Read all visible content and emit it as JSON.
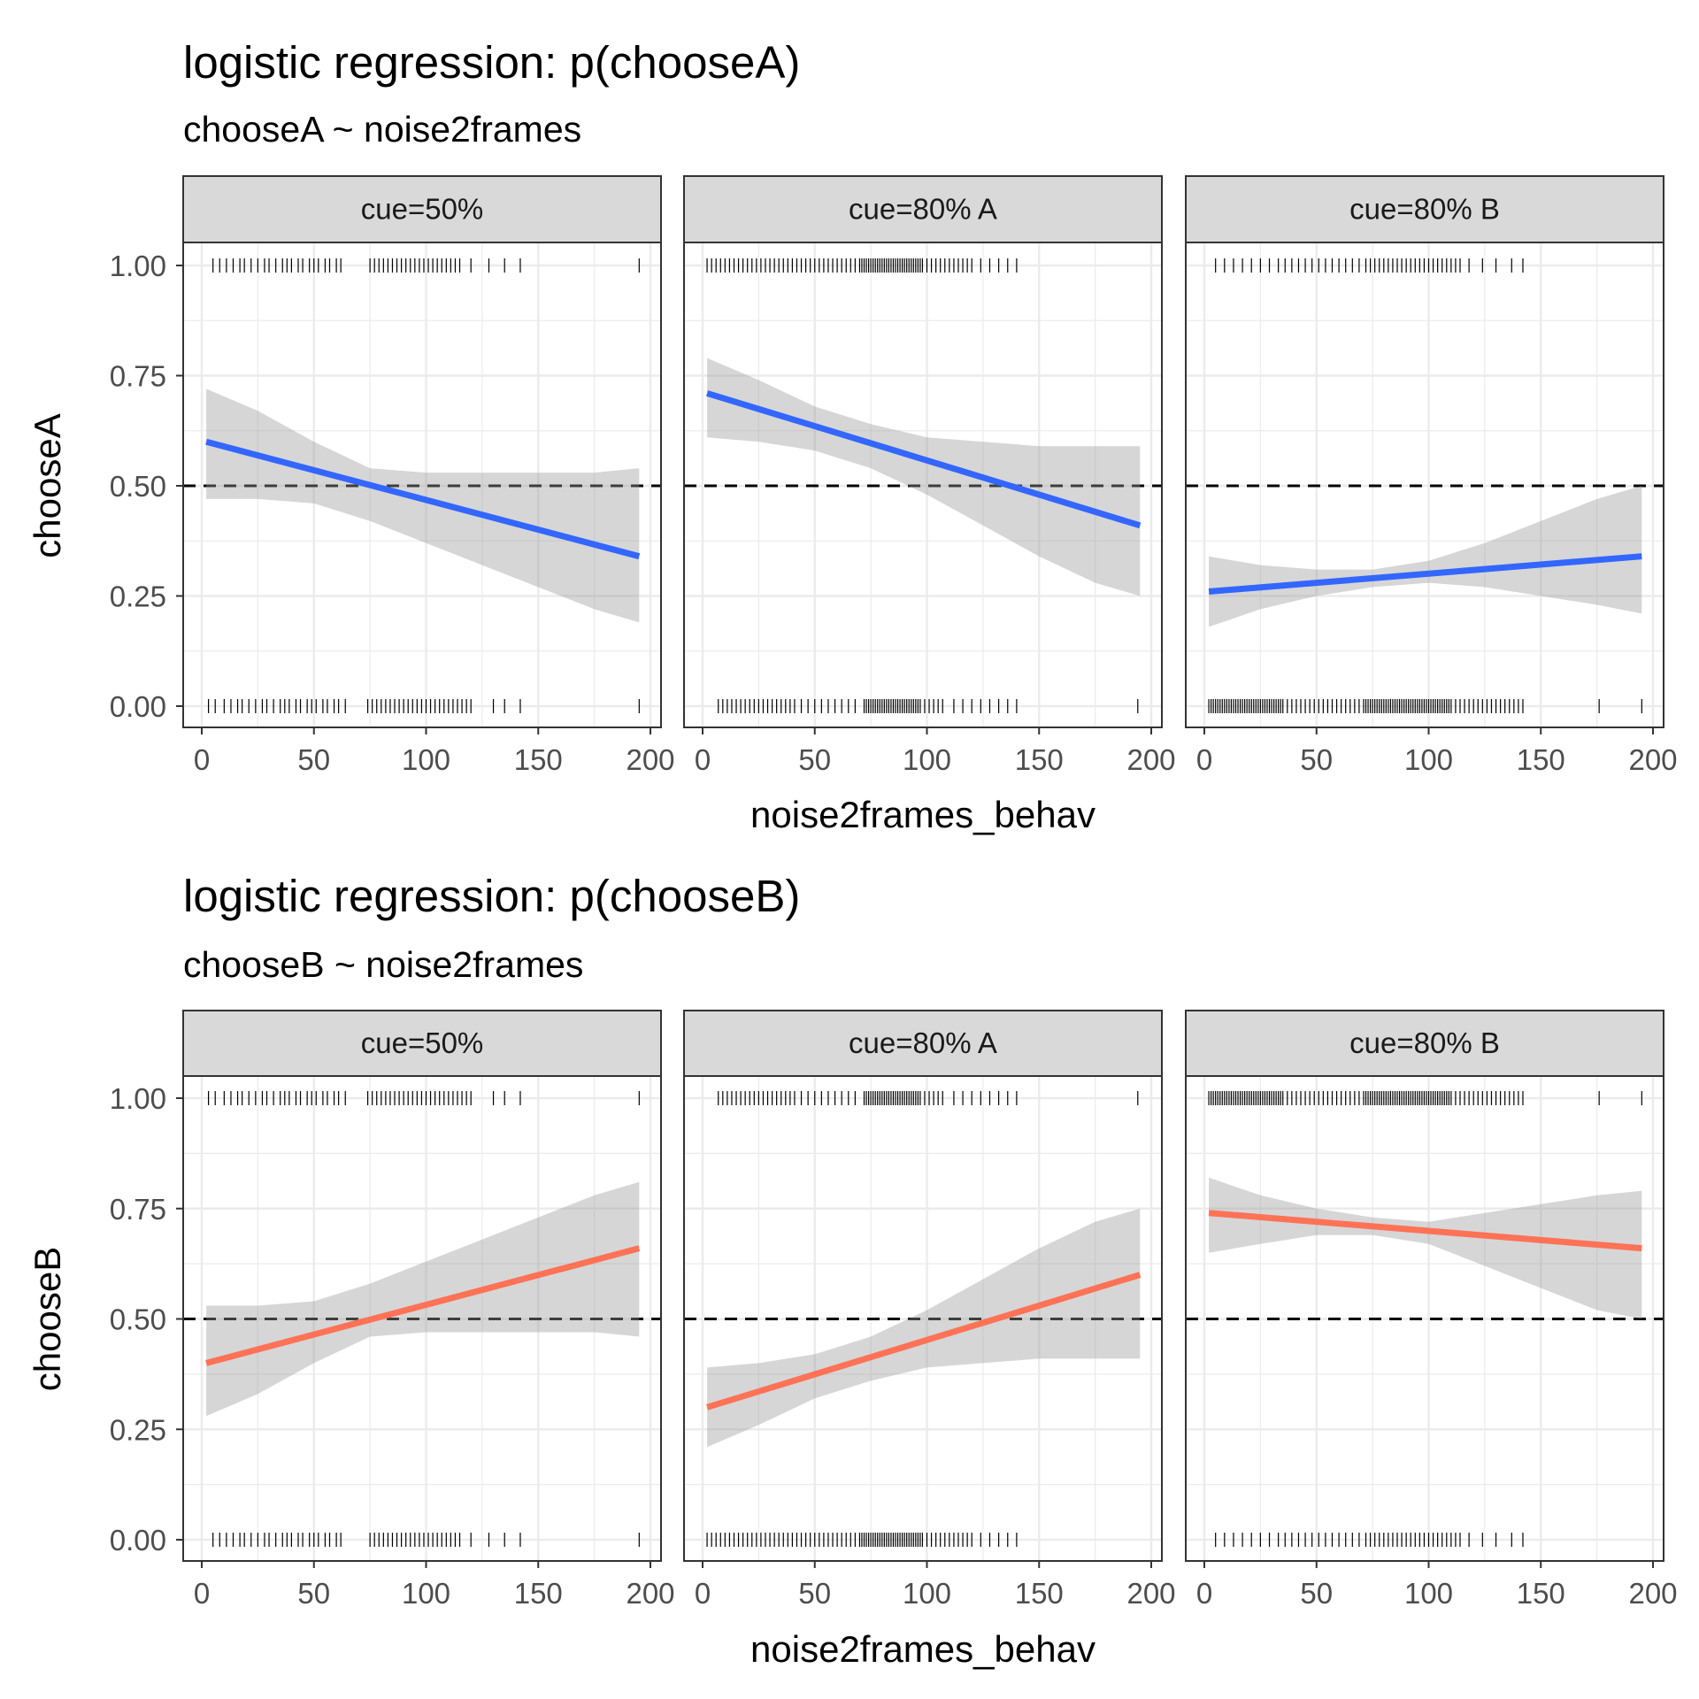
{
  "chart_data": [
    {
      "type": "line",
      "title": "logistic regression: p(chooseA)",
      "subtitle": "chooseA ~ noise2frames",
      "xlabel": "noise2frames_behav",
      "ylabel": "chooseA",
      "xlim": [
        -7,
        205
      ],
      "ylim": [
        -0.05,
        1.05
      ],
      "x_ticks": [
        "0",
        "50",
        "100",
        "150",
        "200"
      ],
      "y_ticks": [
        "0.00",
        "0.25",
        "0.50",
        "0.75",
        "1.00"
      ],
      "reference_line": 0.5,
      "grid": true,
      "line_color": "#3366FF",
      "panels": [
        {
          "strip": "cue=50%",
          "x": [
            2,
            195
          ],
          "fit": [
            0.6,
            0.34
          ],
          "ci_x": [
            2,
            25,
            50,
            75,
            100,
            125,
            150,
            175,
            195
          ],
          "ci_lower": [
            0.47,
            0.47,
            0.46,
            0.42,
            0.37,
            0.32,
            0.27,
            0.22,
            0.19
          ],
          "ci_upper": [
            0.72,
            0.67,
            0.6,
            0.54,
            0.53,
            0.53,
            0.53,
            0.53,
            0.54
          ],
          "rug_top": [
            5,
            8,
            11,
            14,
            17,
            19,
            22,
            25,
            28,
            30,
            33,
            36,
            38,
            40,
            43,
            45,
            48,
            50,
            52,
            55,
            57,
            60,
            62,
            75,
            77,
            79,
            81,
            83,
            85,
            87,
            89,
            91,
            93,
            95,
            97,
            99,
            101,
            103,
            105,
            107,
            109,
            111,
            113,
            115,
            120,
            128,
            135,
            142,
            195
          ],
          "rug_bottom": [
            3,
            6,
            10,
            13,
            16,
            18,
            21,
            24,
            27,
            29,
            32,
            35,
            37,
            39,
            42,
            44,
            47,
            49,
            51,
            54,
            56,
            59,
            61,
            64,
            74,
            76,
            78,
            80,
            82,
            84,
            86,
            88,
            90,
            92,
            94,
            96,
            98,
            100,
            102,
            104,
            106,
            108,
            110,
            112,
            114,
            116,
            118,
            120,
            130,
            135,
            142,
            195
          ]
        },
        {
          "strip": "cue=80% A",
          "x": [
            2,
            195
          ],
          "fit": [
            0.71,
            0.41
          ],
          "ci_x": [
            2,
            25,
            50,
            75,
            100,
            125,
            150,
            175,
            195
          ],
          "ci_lower": [
            0.61,
            0.6,
            0.58,
            0.54,
            0.48,
            0.41,
            0.34,
            0.28,
            0.25
          ],
          "ci_upper": [
            0.79,
            0.74,
            0.68,
            0.64,
            0.61,
            0.6,
            0.59,
            0.59,
            0.59
          ],
          "rug_top": [
            2,
            4,
            6,
            8,
            10,
            12,
            14,
            16,
            18,
            20,
            22,
            24,
            26,
            28,
            30,
            32,
            34,
            36,
            38,
            40,
            42,
            44,
            46,
            48,
            50,
            52,
            54,
            56,
            58,
            60,
            62,
            64,
            66,
            68,
            70,
            71,
            72,
            73,
            74,
            75,
            76,
            77,
            78,
            79,
            80,
            81,
            82,
            83,
            84,
            85,
            86,
            87,
            88,
            89,
            90,
            91,
            92,
            93,
            94,
            95,
            96,
            97,
            98,
            100,
            102,
            104,
            106,
            108,
            110,
            112,
            114,
            116,
            118,
            120,
            124,
            128,
            132,
            136,
            140
          ],
          "rug_bottom": [
            7,
            9,
            11,
            13,
            15,
            17,
            19,
            21,
            23,
            25,
            27,
            29,
            31,
            33,
            35,
            37,
            39,
            41,
            44,
            47,
            50,
            53,
            56,
            59,
            62,
            65,
            68,
            72,
            73,
            74,
            75,
            76,
            77,
            78,
            79,
            80,
            81,
            82,
            83,
            84,
            85,
            86,
            87,
            88,
            89,
            90,
            91,
            92,
            93,
            94,
            95,
            96,
            97,
            99,
            101,
            103,
            105,
            107,
            112,
            116,
            120,
            124,
            128,
            132,
            136,
            140,
            194
          ]
        },
        {
          "strip": "cue=80% B",
          "x": [
            2,
            195
          ],
          "fit": [
            0.26,
            0.34
          ],
          "ci_x": [
            2,
            25,
            50,
            75,
            100,
            125,
            150,
            175,
            195
          ],
          "ci_lower": [
            0.18,
            0.22,
            0.25,
            0.27,
            0.28,
            0.27,
            0.25,
            0.23,
            0.21
          ],
          "ci_upper": [
            0.34,
            0.32,
            0.31,
            0.31,
            0.33,
            0.37,
            0.42,
            0.47,
            0.5
          ],
          "rug_top": [
            5,
            9,
            13,
            17,
            21,
            25,
            29,
            33,
            36,
            39,
            42,
            45,
            48,
            51,
            54,
            57,
            60,
            63,
            66,
            69,
            72,
            74,
            76,
            78,
            80,
            82,
            84,
            86,
            88,
            90,
            92,
            94,
            96,
            98,
            100,
            102,
            104,
            106,
            108,
            110,
            112,
            114,
            118,
            124,
            130,
            137,
            142
          ],
          "rug_bottom": [
            2,
            3,
            4,
            5,
            6,
            7,
            8,
            9,
            10,
            11,
            12,
            13,
            14,
            15,
            16,
            17,
            18,
            19,
            20,
            21,
            22,
            23,
            24,
            25,
            26,
            27,
            28,
            29,
            30,
            31,
            32,
            33,
            34,
            35,
            37,
            39,
            41,
            43,
            45,
            47,
            49,
            51,
            53,
            55,
            57,
            59,
            61,
            63,
            65,
            67,
            69,
            71,
            72,
            73,
            74,
            75,
            76,
            77,
            78,
            79,
            80,
            81,
            82,
            83,
            84,
            85,
            86,
            87,
            88,
            89,
            90,
            91,
            92,
            93,
            94,
            95,
            96,
            97,
            98,
            99,
            100,
            101,
            102,
            103,
            104,
            105,
            106,
            107,
            108,
            109,
            110,
            112,
            114,
            116,
            118,
            120,
            122,
            124,
            126,
            128,
            130,
            132,
            134,
            136,
            138,
            140,
            142,
            176,
            195
          ]
        }
      ]
    },
    {
      "type": "line",
      "title": "logistic regression: p(chooseB)",
      "subtitle": "chooseB ~ noise2frames",
      "xlabel": "noise2frames_behav",
      "ylabel": "chooseB",
      "xlim": [
        -7,
        205
      ],
      "ylim": [
        -0.05,
        1.05
      ],
      "x_ticks": [
        "0",
        "50",
        "100",
        "150",
        "200"
      ],
      "y_ticks": [
        "0.00",
        "0.25",
        "0.50",
        "0.75",
        "1.00"
      ],
      "reference_line": 0.5,
      "grid": true,
      "line_color": "#FF7256",
      "panels": [
        {
          "strip": "cue=50%",
          "x": [
            2,
            195
          ],
          "fit": [
            0.4,
            0.66
          ],
          "ci_x": [
            2,
            25,
            50,
            75,
            100,
            125,
            150,
            175,
            195
          ],
          "ci_lower": [
            0.28,
            0.33,
            0.4,
            0.46,
            0.47,
            0.47,
            0.47,
            0.47,
            0.46
          ],
          "ci_upper": [
            0.53,
            0.53,
            0.54,
            0.58,
            0.63,
            0.68,
            0.73,
            0.78,
            0.81
          ],
          "rug_top": [
            3,
            6,
            10,
            13,
            16,
            18,
            21,
            24,
            27,
            29,
            32,
            35,
            37,
            39,
            42,
            44,
            47,
            49,
            51,
            54,
            56,
            59,
            61,
            64,
            74,
            76,
            78,
            80,
            82,
            84,
            86,
            88,
            90,
            92,
            94,
            96,
            98,
            100,
            102,
            104,
            106,
            108,
            110,
            112,
            114,
            116,
            118,
            120,
            130,
            135,
            142,
            195
          ],
          "rug_bottom": [
            5,
            8,
            11,
            14,
            17,
            19,
            22,
            25,
            28,
            30,
            33,
            36,
            38,
            40,
            43,
            45,
            48,
            50,
            52,
            55,
            57,
            60,
            62,
            75,
            77,
            79,
            81,
            83,
            85,
            87,
            89,
            91,
            93,
            95,
            97,
            99,
            101,
            103,
            105,
            107,
            109,
            111,
            113,
            115,
            120,
            128,
            135,
            142,
            195
          ]
        },
        {
          "strip": "cue=80% A",
          "x": [
            2,
            195
          ],
          "fit": [
            0.3,
            0.6
          ],
          "ci_x": [
            2,
            25,
            50,
            75,
            100,
            125,
            150,
            175,
            195
          ],
          "ci_lower": [
            0.21,
            0.26,
            0.32,
            0.36,
            0.39,
            0.4,
            0.41,
            0.41,
            0.41
          ],
          "ci_upper": [
            0.39,
            0.4,
            0.42,
            0.46,
            0.52,
            0.59,
            0.66,
            0.72,
            0.75
          ],
          "rug_top": [
            7,
            9,
            11,
            13,
            15,
            17,
            19,
            21,
            23,
            25,
            27,
            29,
            31,
            33,
            35,
            37,
            39,
            41,
            44,
            47,
            50,
            53,
            56,
            59,
            62,
            65,
            68,
            72,
            73,
            74,
            75,
            76,
            77,
            78,
            79,
            80,
            81,
            82,
            83,
            84,
            85,
            86,
            87,
            88,
            89,
            90,
            91,
            92,
            93,
            94,
            95,
            96,
            97,
            99,
            101,
            103,
            105,
            107,
            112,
            116,
            120,
            124,
            128,
            132,
            136,
            140,
            194
          ],
          "rug_bottom": [
            2,
            4,
            6,
            8,
            10,
            12,
            14,
            16,
            18,
            20,
            22,
            24,
            26,
            28,
            30,
            32,
            34,
            36,
            38,
            40,
            42,
            44,
            46,
            48,
            50,
            52,
            54,
            56,
            58,
            60,
            62,
            64,
            66,
            68,
            70,
            71,
            72,
            73,
            74,
            75,
            76,
            77,
            78,
            79,
            80,
            81,
            82,
            83,
            84,
            85,
            86,
            87,
            88,
            89,
            90,
            91,
            92,
            93,
            94,
            95,
            96,
            97,
            98,
            100,
            102,
            104,
            106,
            108,
            110,
            112,
            114,
            116,
            118,
            120,
            124,
            128,
            132,
            136,
            140
          ]
        },
        {
          "strip": "cue=80% B",
          "x": [
            2,
            195
          ],
          "fit": [
            0.74,
            0.66
          ],
          "ci_x": [
            2,
            25,
            50,
            75,
            100,
            125,
            150,
            175,
            195
          ],
          "ci_lower": [
            0.65,
            0.67,
            0.69,
            0.69,
            0.67,
            0.62,
            0.57,
            0.52,
            0.5
          ],
          "ci_upper": [
            0.82,
            0.78,
            0.75,
            0.73,
            0.72,
            0.74,
            0.76,
            0.78,
            0.79
          ],
          "rug_top": [
            2,
            3,
            4,
            5,
            6,
            7,
            8,
            9,
            10,
            11,
            12,
            13,
            14,
            15,
            16,
            17,
            18,
            19,
            20,
            21,
            22,
            23,
            24,
            25,
            26,
            27,
            28,
            29,
            30,
            31,
            32,
            33,
            34,
            35,
            37,
            39,
            41,
            43,
            45,
            47,
            49,
            51,
            53,
            55,
            57,
            59,
            61,
            63,
            65,
            67,
            69,
            71,
            72,
            73,
            74,
            75,
            76,
            77,
            78,
            79,
            80,
            81,
            82,
            83,
            84,
            85,
            86,
            87,
            88,
            89,
            90,
            91,
            92,
            93,
            94,
            95,
            96,
            97,
            98,
            99,
            100,
            101,
            102,
            103,
            104,
            105,
            106,
            107,
            108,
            109,
            110,
            112,
            114,
            116,
            118,
            120,
            122,
            124,
            126,
            128,
            130,
            132,
            134,
            136,
            138,
            140,
            142,
            176,
            195
          ],
          "rug_bottom": [
            5,
            9,
            13,
            17,
            21,
            25,
            29,
            33,
            36,
            39,
            42,
            45,
            48,
            51,
            54,
            57,
            60,
            63,
            66,
            69,
            72,
            74,
            76,
            78,
            80,
            82,
            84,
            86,
            88,
            90,
            92,
            94,
            96,
            98,
            100,
            102,
            104,
            106,
            108,
            110,
            112,
            114,
            118,
            124,
            130,
            137,
            142
          ]
        }
      ]
    }
  ]
}
